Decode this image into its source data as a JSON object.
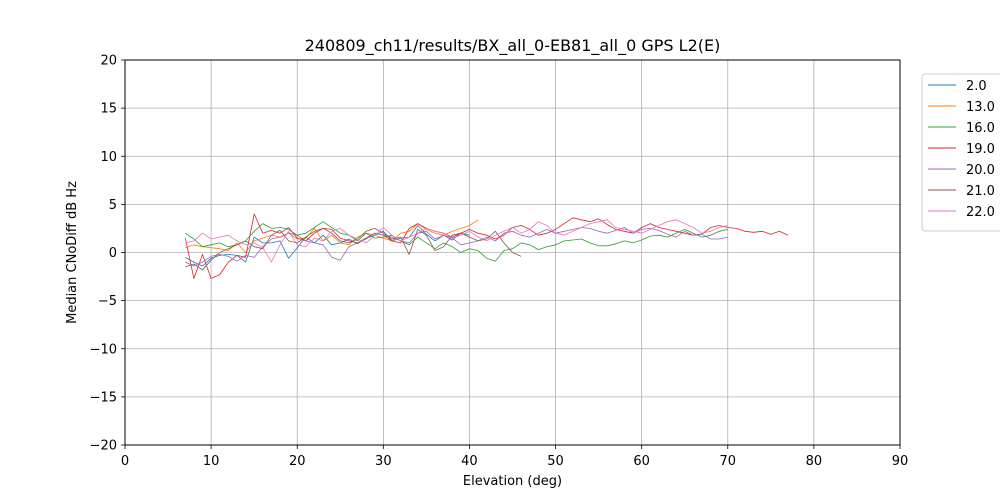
{
  "chart_data": {
    "type": "line",
    "title": "240809_ch11/results/BX_all_0-EB81_all_0 GPS L2(E)",
    "xlabel": "Elevation (deg)",
    "ylabel": "Median CNoDiff dB Hz",
    "xlim": [
      0,
      90
    ],
    "ylim": [
      -20,
      20
    ],
    "xticks": [
      0,
      10,
      20,
      30,
      40,
      50,
      60,
      70,
      80,
      90
    ],
    "yticks": [
      -20,
      -15,
      -10,
      -5,
      0,
      5,
      10,
      15,
      20
    ],
    "grid": true,
    "legend_position": "right, outside plot",
    "series": [
      {
        "name": "2.0",
        "color": "#1f77b4",
        "x": [
          7,
          8,
          9,
          10,
          11,
          12,
          13,
          14,
          15,
          16,
          17,
          18,
          19,
          20,
          21,
          22,
          23,
          24,
          25,
          26,
          27,
          28,
          29,
          30,
          31,
          32,
          33,
          34,
          35,
          36,
          37,
          38,
          39,
          40
        ],
        "y": [
          -0.5,
          -1.0,
          -1.4,
          -0.6,
          -0.3,
          -0.2,
          -0.3,
          -1.0,
          1.6,
          1.0,
          1.0,
          1.2,
          -0.6,
          0.5,
          1.6,
          1.0,
          1.8,
          0.8,
          1.0,
          1.4,
          0.9,
          1.5,
          1.8,
          2.2,
          1.2,
          1.5,
          1.6,
          2.8,
          1.9,
          1.2,
          1.8,
          1.3,
          2.0,
          1.8
        ]
      },
      {
        "name": "13.0",
        "color": "#ff7f0e",
        "x": [
          7,
          8,
          9,
          10,
          11,
          12,
          13,
          14,
          15,
          16,
          17,
          18,
          19,
          20,
          21,
          22,
          23,
          24,
          25,
          26,
          27,
          28,
          29,
          30,
          31,
          32,
          33,
          34,
          35,
          36,
          37,
          38,
          39,
          40,
          41
        ],
        "y": [
          0.5,
          0.8,
          0.6,
          0.5,
          0.4,
          0.2,
          1.0,
          0.0,
          1.2,
          1.5,
          1.8,
          1.6,
          2.0,
          1.4,
          1.5,
          2.5,
          1.2,
          1.8,
          1.0,
          0.8,
          1.6,
          2.0,
          1.8,
          1.5,
          1.2,
          2.0,
          2.2,
          3.0,
          2.4,
          2.0,
          1.8,
          2.2,
          2.5,
          2.8,
          3.4
        ]
      },
      {
        "name": "16.0",
        "color": "#2ca02c",
        "x": [
          7,
          8,
          9,
          10,
          11,
          12,
          13,
          14,
          15,
          16,
          17,
          18,
          19,
          20,
          21,
          22,
          23,
          24,
          25,
          26,
          27,
          28,
          29,
          30,
          31,
          32,
          33,
          34,
          35,
          36,
          37,
          38,
          39,
          40,
          41,
          42,
          43,
          44,
          45,
          46,
          47,
          48,
          49,
          50,
          51,
          52,
          53,
          54,
          55,
          56,
          57,
          58,
          59,
          60,
          61,
          62,
          63,
          64,
          65,
          66,
          67,
          68,
          69,
          70
        ],
        "y": [
          2.0,
          1.4,
          0.6,
          0.8,
          1.0,
          0.6,
          0.8,
          1.2,
          2.2,
          3.0,
          2.5,
          2.6,
          2.4,
          1.8,
          2.0,
          2.6,
          3.2,
          2.6,
          2.0,
          1.8,
          1.2,
          2.0,
          1.5,
          1.6,
          1.8,
          1.2,
          0.8,
          1.6,
          1.0,
          0.4,
          1.0,
          0.6,
          0.0,
          0.4,
          0.2,
          -0.6,
          -0.9,
          0.2,
          0.4,
          1.0,
          0.8,
          0.3,
          0.6,
          0.8,
          1.2,
          1.3,
          1.4,
          1.0,
          0.7,
          0.7,
          0.9,
          1.2,
          1.0,
          1.3,
          1.7,
          1.8,
          1.6,
          2.0,
          2.4,
          2.0,
          1.6,
          1.8,
          2.2,
          2.4
        ]
      },
      {
        "name": "19.0",
        "color": "#d62728",
        "x": [
          7,
          8,
          9,
          10,
          11,
          12,
          13,
          14,
          15,
          16,
          17,
          18,
          19,
          20,
          21,
          22,
          23,
          24,
          25,
          26,
          27,
          28,
          29,
          30,
          31,
          32,
          33,
          34,
          35,
          36,
          37,
          38,
          39,
          40,
          41,
          42,
          43,
          44,
          45,
          46,
          47,
          48,
          49,
          50,
          51,
          52,
          53,
          54,
          55,
          56,
          57,
          58,
          59,
          60,
          61,
          62,
          63,
          64,
          65,
          66,
          67,
          68,
          69,
          70,
          71,
          72,
          73,
          74,
          75,
          76,
          77
        ],
        "y": [
          1.5,
          -2.7,
          -0.2,
          -2.7,
          -2.3,
          -1.0,
          -0.3,
          -0.5,
          4.0,
          2.0,
          2.3,
          2.0,
          2.6,
          1.5,
          1.2,
          2.0,
          2.5,
          2.4,
          1.5,
          1.2,
          1.0,
          1.5,
          2.0,
          1.8,
          1.2,
          1.0,
          2.5,
          3.0,
          2.5,
          2.2,
          2.0,
          1.6,
          2.0,
          2.4,
          2.0,
          1.8,
          1.4,
          1.8,
          2.6,
          2.8,
          2.4,
          1.8,
          2.0,
          2.4,
          3.0,
          3.6,
          3.4,
          3.2,
          3.5,
          2.9,
          2.4,
          2.2,
          2.0,
          2.6,
          3.0,
          2.6,
          2.4,
          2.2,
          2.0,
          1.8,
          1.9,
          2.6,
          2.8,
          2.6,
          2.5,
          2.2,
          2.1,
          2.2,
          1.9,
          2.2,
          1.8
        ]
      },
      {
        "name": "20.0",
        "color": "#9467bd",
        "x": [
          7,
          8,
          9,
          10,
          11,
          12,
          13,
          14,
          15,
          16,
          17,
          18,
          19,
          20,
          21,
          22,
          23,
          24,
          25,
          26,
          27,
          28,
          29,
          30,
          31,
          32,
          33,
          34,
          35,
          36,
          37,
          38,
          39,
          40,
          41,
          42,
          43,
          44,
          45,
          46,
          47,
          48,
          49,
          50,
          51,
          52,
          53,
          54,
          55,
          56,
          57,
          58,
          59,
          60,
          61,
          62,
          63,
          64,
          65,
          66,
          67,
          68,
          69,
          70
        ],
        "y": [
          -1.0,
          -1.4,
          -1.0,
          -0.4,
          -0.2,
          -0.4,
          -0.9,
          -0.3,
          -0.5,
          0.6,
          1.4,
          1.6,
          2.0,
          1.8,
          1.2,
          1.0,
          0.8,
          -0.5,
          -0.8,
          0.6,
          1.0,
          1.4,
          2.0,
          1.8,
          1.6,
          1.2,
          1.0,
          2.0,
          2.2,
          1.4,
          1.8,
          1.5,
          0.8,
          1.0,
          1.2,
          1.6,
          1.2,
          2.0,
          2.2,
          1.8,
          1.6,
          2.0,
          2.4,
          2.0,
          2.2,
          2.4,
          2.6,
          2.5,
          2.2,
          2.0,
          2.3,
          2.6,
          2.0,
          2.4,
          2.5,
          2.3,
          1.9,
          1.6,
          2.2,
          1.8,
          1.9,
          1.4,
          1.4,
          1.6
        ]
      },
      {
        "name": "21.0",
        "color": "#8c564b",
        "x": [
          7,
          8,
          9,
          10,
          11,
          12,
          13,
          14,
          15,
          16,
          17,
          18,
          19,
          20,
          21,
          22,
          23,
          24,
          25,
          26,
          27,
          28,
          29,
          30,
          31,
          32,
          33,
          34,
          35,
          36,
          37,
          38,
          39,
          40,
          41,
          42,
          43,
          44,
          45,
          46
        ],
        "y": [
          -1.5,
          -1.2,
          -1.8,
          -0.8,
          0.0,
          0.4,
          0.8,
          1.2,
          0.6,
          0.4,
          1.8,
          2.3,
          1.2,
          1.0,
          1.6,
          2.2,
          2.5,
          2.0,
          1.2,
          1.0,
          1.4,
          2.2,
          2.5,
          2.0,
          1.4,
          1.6,
          -0.2,
          2.4,
          1.8,
          0.2,
          0.6,
          1.8,
          2.0,
          1.6,
          1.2,
          1.4,
          2.2,
          1.0,
          0.0,
          -0.4
        ]
      },
      {
        "name": "22.0",
        "color": "#e377c2",
        "x": [
          7,
          8,
          9,
          10,
          11,
          12,
          13,
          14,
          15,
          16,
          17,
          18,
          19,
          20,
          21,
          22,
          23,
          24,
          25,
          26,
          27,
          28,
          29,
          30,
          31,
          32,
          33,
          34,
          35,
          36,
          37,
          38,
          39,
          40,
          41,
          42,
          43,
          44,
          45,
          46,
          47,
          48,
          49,
          50,
          51,
          52,
          53,
          54,
          55,
          56,
          57,
          58,
          59,
          60,
          61,
          62,
          63,
          64,
          65,
          66,
          67,
          68,
          69,
          70
        ],
        "y": [
          1.0,
          1.2,
          2.0,
          1.4,
          1.6,
          1.8,
          1.2,
          0.8,
          1.0,
          0.5,
          -1.0,
          0.8,
          2.2,
          0.8,
          0.6,
          1.5,
          1.2,
          2.2,
          2.5,
          1.8,
          1.4,
          1.0,
          1.8,
          2.6,
          1.8,
          1.2,
          1.6,
          2.0,
          2.5,
          2.2,
          2.0,
          1.5,
          1.8,
          2.2,
          1.6,
          1.2,
          1.8,
          2.2,
          2.6,
          2.0,
          2.4,
          3.2,
          2.8,
          2.0,
          1.8,
          2.2,
          2.6,
          3.0,
          3.2,
          3.4,
          2.6,
          2.4,
          2.2,
          2.0,
          2.4,
          2.8,
          3.2,
          3.4,
          3.0,
          2.6,
          2.0,
          2.2,
          2.6,
          2.8
        ]
      }
    ]
  }
}
